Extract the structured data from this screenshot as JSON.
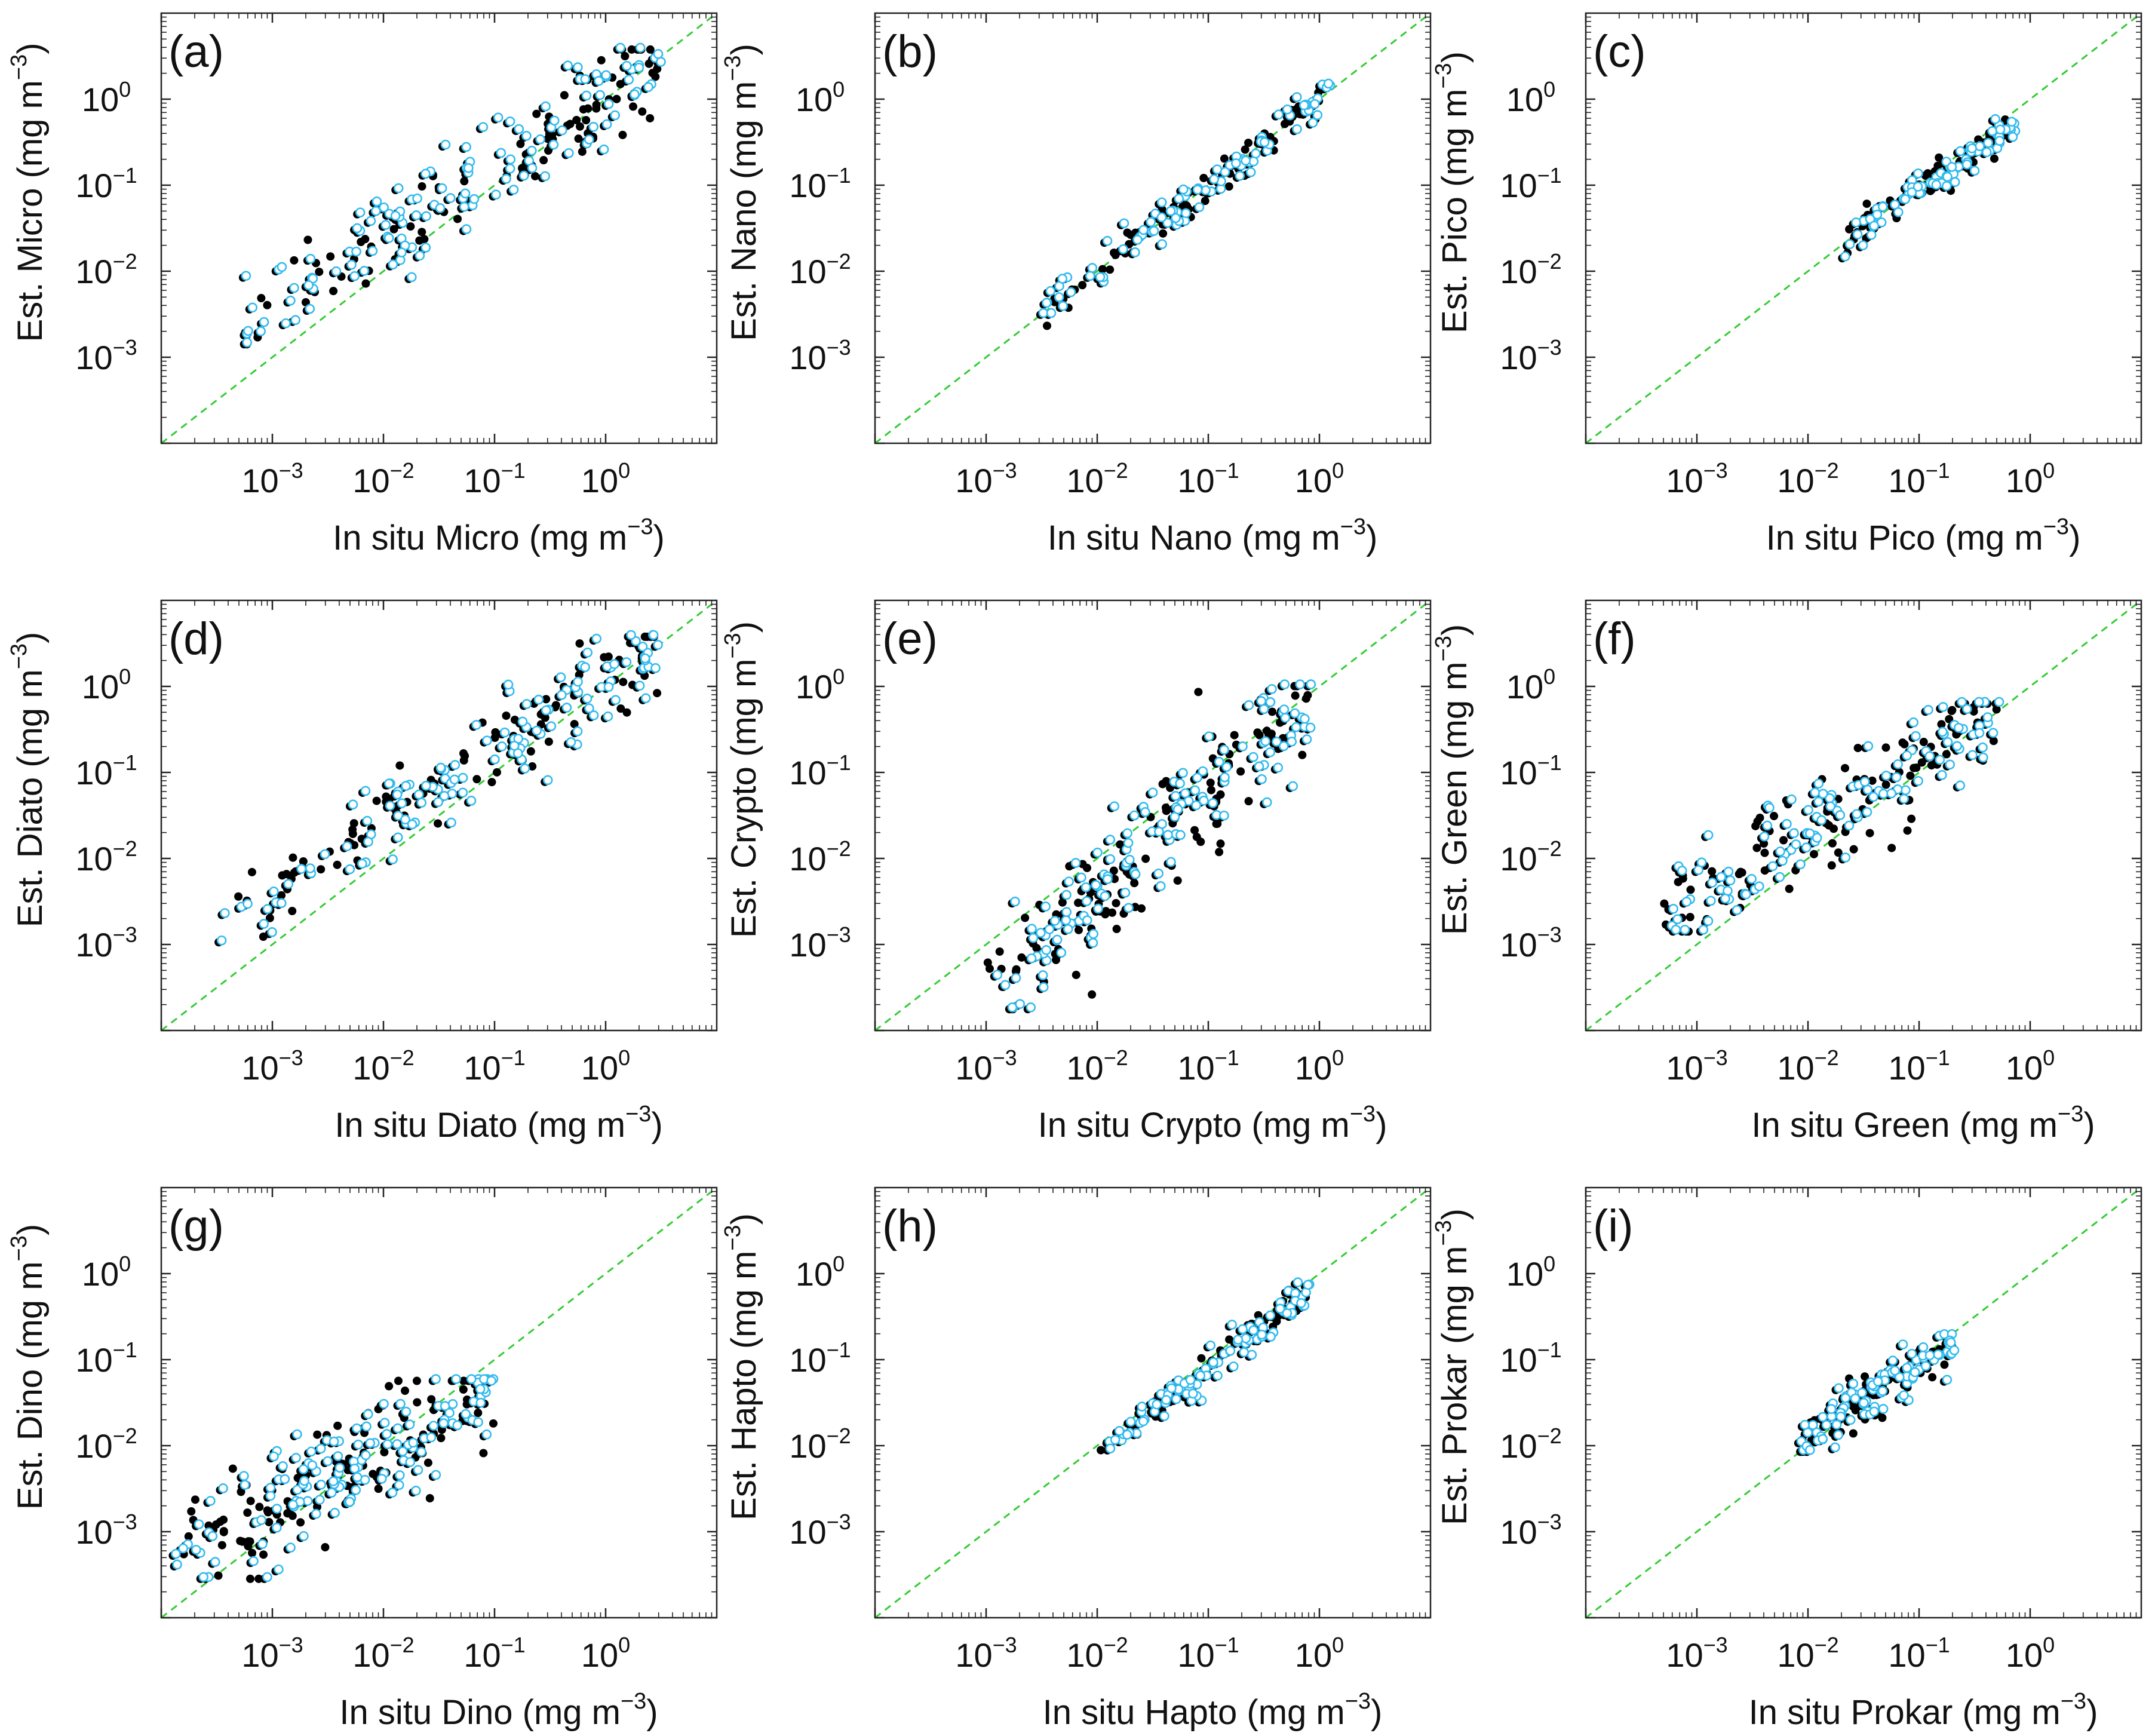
{
  "figure": {
    "tick_labels": [
      {
        "base": "10",
        "exp": "−3"
      },
      {
        "base": "10",
        "exp": "−2"
      },
      {
        "base": "10",
        "exp": "−1"
      },
      {
        "base": "10",
        "exp": "0"
      }
    ],
    "unit_text": "(mg m",
    "unit_exp": "−3",
    "unit_close": ")",
    "colors": {
      "one_to_one_line": "#33cc33",
      "estimate_points": "#000000",
      "validation_points_edge": "#33bbee"
    }
  },
  "chart_data": [
    {
      "type": "scatter",
      "tag": "(a)",
      "xlabel": "In situ Micro",
      "ylabel": "Est. Micro",
      "xscale": "log",
      "yscale": "log",
      "xlim": [
        0.0001,
        10
      ],
      "ylim": [
        0.0001,
        10
      ],
      "one_to_one": true,
      "x_range": [
        0.0005,
        3.0
      ],
      "y_range": [
        0.002,
        3.0
      ],
      "n_points": 220,
      "scatter": 0.28
    },
    {
      "type": "scatter",
      "tag": "(b)",
      "xlabel": "In situ Nano",
      "ylabel": "Est. Nano",
      "xscale": "log",
      "yscale": "log",
      "xlim": [
        0.0001,
        10
      ],
      "ylim": [
        0.0001,
        10
      ],
      "one_to_one": true,
      "x_range": [
        0.003,
        1.2
      ],
      "y_range": [
        0.003,
        1.2
      ],
      "n_points": 170,
      "scatter": 0.1
    },
    {
      "type": "scatter",
      "tag": "(c)",
      "xlabel": "In situ Pico",
      "ylabel": "Est. Pico",
      "xscale": "log",
      "yscale": "log",
      "xlim": [
        0.0001,
        10
      ],
      "ylim": [
        0.0001,
        10
      ],
      "one_to_one": true,
      "x_range": [
        0.02,
        0.7
      ],
      "y_range": [
        0.02,
        0.5
      ],
      "n_points": 150,
      "scatter": 0.09
    },
    {
      "type": "scatter",
      "tag": "(d)",
      "xlabel": "In situ Diato",
      "ylabel": "Est. Diato",
      "xscale": "log",
      "yscale": "log",
      "xlim": [
        0.0001,
        10
      ],
      "ylim": [
        0.0001,
        10
      ],
      "one_to_one": true,
      "x_range": [
        0.0003,
        3.0
      ],
      "y_range": [
        0.0015,
        3.0
      ],
      "n_points": 220,
      "scatter": 0.26
    },
    {
      "type": "scatter",
      "tag": "(e)",
      "xlabel": "In situ Crypto",
      "ylabel": "Est. Crypto",
      "xscale": "log",
      "yscale": "log",
      "xlim": [
        0.0001,
        10
      ],
      "ylim": [
        0.0001,
        10
      ],
      "one_to_one": true,
      "x_range": [
        0.001,
        0.8
      ],
      "y_range": [
        0.00025,
        0.8
      ],
      "n_points": 260,
      "scatter": 0.35
    },
    {
      "type": "scatter",
      "tag": "(f)",
      "xlabel": "In situ Green",
      "ylabel": "Est. Green",
      "xscale": "log",
      "yscale": "log",
      "xlim": [
        0.0001,
        10
      ],
      "ylim": [
        0.0001,
        10
      ],
      "one_to_one": true,
      "x_range": [
        0.0005,
        0.5
      ],
      "y_range": [
        0.002,
        0.5
      ],
      "n_points": 220,
      "scatter": 0.28
    },
    {
      "type": "scatter",
      "tag": "(g)",
      "xlabel": "In situ Dino",
      "ylabel": "Est. Dino",
      "xscale": "log",
      "yscale": "log",
      "xlim": [
        0.0001,
        10
      ],
      "ylim": [
        0.0001,
        10
      ],
      "one_to_one": true,
      "x_range": [
        0.00012,
        0.1
      ],
      "y_range": [
        0.0004,
        0.045
      ],
      "n_points": 260,
      "scatter": 0.32
    },
    {
      "type": "scatter",
      "tag": "(h)",
      "xlabel": "In situ Hapto",
      "ylabel": "Est. Hapto",
      "xscale": "log",
      "yscale": "log",
      "xlim": [
        0.0001,
        10
      ],
      "ylim": [
        0.0001,
        10
      ],
      "one_to_one": true,
      "x_range": [
        0.01,
        0.8
      ],
      "y_range": [
        0.008,
        0.6
      ],
      "n_points": 150,
      "scatter": 0.1
    },
    {
      "type": "scatter",
      "tag": "(i)",
      "xlabel": "In situ Prokar",
      "ylabel": "Est. Prokar",
      "xscale": "log",
      "yscale": "log",
      "xlim": [
        0.0001,
        10
      ],
      "ylim": [
        0.0001,
        10
      ],
      "one_to_one": true,
      "x_range": [
        0.008,
        0.2
      ],
      "y_range": [
        0.012,
        0.15
      ],
      "n_points": 170,
      "scatter": 0.14
    }
  ]
}
